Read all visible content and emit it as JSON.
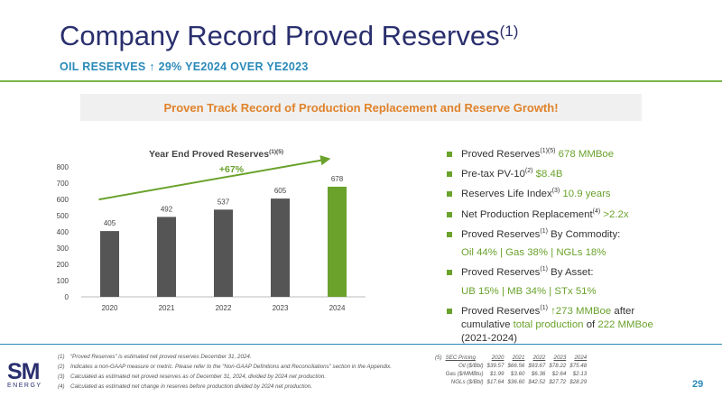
{
  "header": {
    "title": "Company Record Proved Reserves",
    "title_sup": "(1)",
    "subtitle": "OIL RESERVES ↑ 29% YE2024 OVER YE2023"
  },
  "banner": "Proven Track Record of Production Replacement and Reserve Growth!",
  "chart_data": {
    "type": "bar",
    "title": "Year End Proved Reserves",
    "title_sup": "(1)(5)",
    "categories": [
      "2020",
      "2021",
      "2022",
      "2023",
      "2024"
    ],
    "values": [
      405,
      492,
      537,
      605,
      678
    ],
    "ylim": [
      0,
      800
    ],
    "yticks": [
      0,
      100,
      200,
      300,
      400,
      500,
      600,
      700,
      800
    ],
    "annotation": "+67%",
    "bar_colors": [
      "#555555",
      "#555555",
      "#555555",
      "#555555",
      "#6aa22c"
    ],
    "trend_color": "#6aa22c",
    "grid": false
  },
  "bullets": {
    "b1_label": "Proved Reserves",
    "b1_sup": "(1)(5)",
    "b1_value": "678 MMBoe",
    "b2_label": "Pre-tax PV-10",
    "b2_sup": "(2)",
    "b2_value": "$8.4B",
    "b3_label": "Reserves Life Index",
    "b3_sup": "(3)",
    "b3_value": "10.9 years",
    "b4_label": "Net Production Replacement",
    "b4_sup": "(4)",
    "b4_value": ">2.2x",
    "b5_label": "Proved Reserves",
    "b5_sup": "(1)",
    "b5_suffix": "By Commodity:",
    "b5_detail": "Oil 44% | Gas 38% | NGLs 18%",
    "b6_label": "Proved Reserves",
    "b6_sup": "(1)",
    "b6_suffix": "By Asset:",
    "b6_detail": "UB 15% | MB 34% | STx 51%",
    "b7_label": "Proved Reserves",
    "b7_sup": "(1)",
    "b7_value": "↑273 MMBoe",
    "b7_after": "after",
    "b7_line2_pre": "cumulative",
    "b7_line2_green": "total production",
    "b7_line2_mid": "of",
    "b7_line2_val": "222 MMBoe",
    "b7_line3": "(2021-2024)"
  },
  "logo": {
    "mark": "SM",
    "word": "ENERGY"
  },
  "footnotes": [
    {
      "num": "(1)",
      "text": "“Proved Reserves” is estimated net proved reserves December 31, 2024."
    },
    {
      "num": "(2)",
      "text": "Indicates a non-GAAP measure or metric. Please refer to the “Non-GAAP Definitions and Reconciliations” section in the Appendix."
    },
    {
      "num": "(3)",
      "text": "Calculated as estimated net proved reserves as of December 31, 2024, divided by 2024 net production."
    },
    {
      "num": "(4)",
      "text": "Calculated as estimated net change in reserves before production divided by 2024 net production."
    }
  ],
  "pricing": {
    "num": "(5)",
    "label": "SEC Pricing",
    "years": [
      "2020",
      "2021",
      "2022",
      "2023",
      "2024"
    ],
    "rows": [
      {
        "name": "Oil ($/Bbl)",
        "values": [
          "$39.57",
          "$66.56",
          "$93.67",
          "$78.22",
          "$75.48"
        ]
      },
      {
        "name": "Gas ($/MMBtu)",
        "values": [
          "$1.99",
          "$3.60",
          "$6.36",
          "$2.64",
          "$2.13"
        ]
      },
      {
        "name": "NGLs ($/Bbl)",
        "values": [
          "$17.64",
          "$36.60",
          "$42.52",
          "$27.72",
          "$28.29"
        ]
      }
    ]
  },
  "page_number": "29"
}
